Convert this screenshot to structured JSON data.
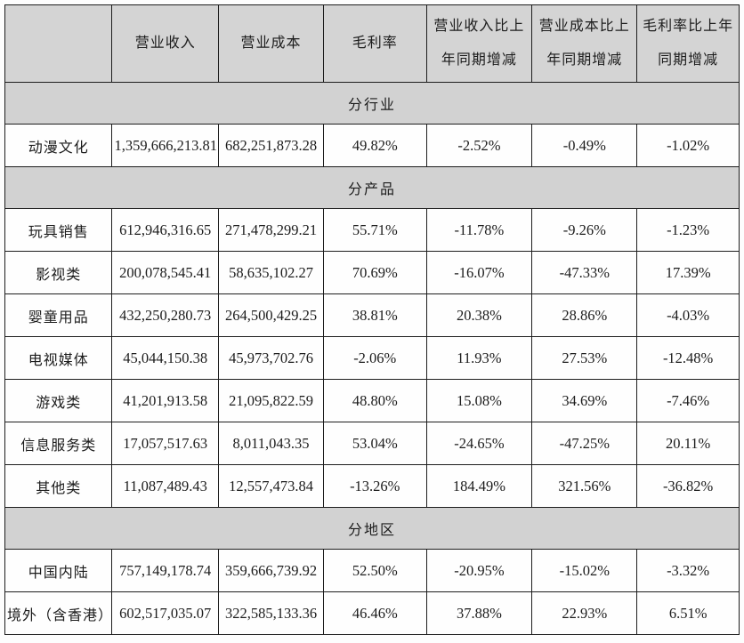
{
  "table": {
    "columns": [
      "",
      "营业收入",
      "营业成本",
      "毛利率",
      "营业收入比上年同期增减",
      "营业成本比上年同期增减",
      "毛利率比上年同期增减"
    ],
    "sections": [
      {
        "title": "分行业",
        "rows": [
          {
            "label": "动漫文化",
            "values": [
              "1,359,666,213.81",
              "682,251,873.28",
              "49.82%",
              "-2.52%",
              "-0.49%",
              "-1.02%"
            ]
          }
        ]
      },
      {
        "title": "分产品",
        "rows": [
          {
            "label": "玩具销售",
            "values": [
              "612,946,316.65",
              "271,478,299.21",
              "55.71%",
              "-11.78%",
              "-9.26%",
              "-1.23%"
            ]
          },
          {
            "label": "影视类",
            "values": [
              "200,078,545.41",
              "58,635,102.27",
              "70.69%",
              "-16.07%",
              "-47.33%",
              "17.39%"
            ]
          },
          {
            "label": "婴童用品",
            "values": [
              "432,250,280.73",
              "264,500,429.25",
              "38.81%",
              "20.38%",
              "28.86%",
              "-4.03%"
            ]
          },
          {
            "label": "电视媒体",
            "values": [
              "45,044,150.38",
              "45,973,702.76",
              "-2.06%",
              "11.93%",
              "27.53%",
              "-12.48%"
            ]
          },
          {
            "label": "游戏类",
            "values": [
              "41,201,913.58",
              "21,095,822.59",
              "48.80%",
              "15.08%",
              "34.69%",
              "-7.46%"
            ]
          },
          {
            "label": "信息服务类",
            "values": [
              "17,057,517.63",
              "8,011,043.35",
              "53.04%",
              "-24.65%",
              "-47.25%",
              "20.11%"
            ]
          },
          {
            "label": "其他类",
            "values": [
              "11,087,489.43",
              "12,557,473.84",
              "-13.26%",
              "184.49%",
              "321.56%",
              "-36.82%"
            ]
          }
        ]
      },
      {
        "title": "分地区",
        "rows": [
          {
            "label": "中国内陆",
            "values": [
              "757,149,178.74",
              "359,666,739.92",
              "52.50%",
              "-20.95%",
              "-15.02%",
              "-3.32%"
            ]
          },
          {
            "label": "境外（含香港）",
            "values": [
              "602,517,035.07",
              "322,585,133.36",
              "46.46%",
              "37.88%",
              "22.93%",
              "6.51%"
            ]
          }
        ]
      }
    ],
    "colors": {
      "header_bg": "#d4d4d4",
      "section_bg": "#d2d2d2",
      "row_bg": "#fefefe",
      "border": "#1d1d1d",
      "text": "#1c1c1c"
    }
  }
}
